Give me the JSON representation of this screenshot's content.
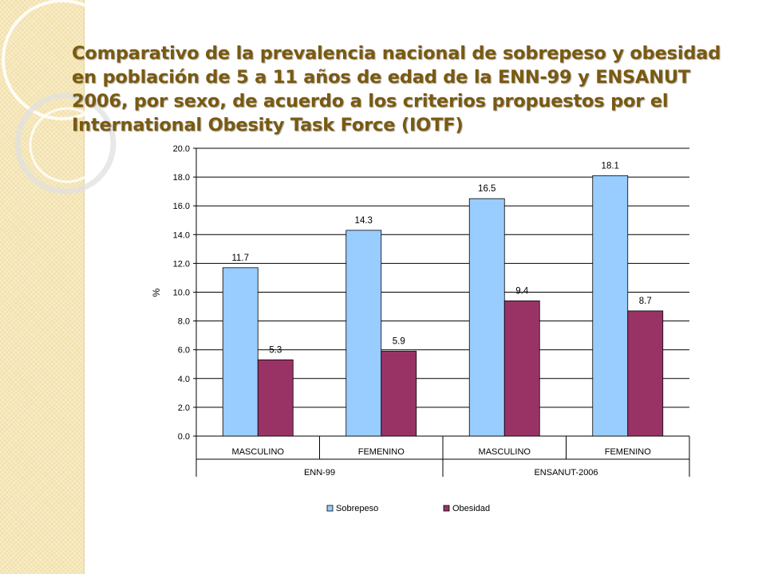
{
  "slide": {
    "title": "Comparativo de la prevalencia nacional de sobrepeso y obesidad en población de 5 a 11 años de edad de la ENN-99 y ENSANUT 2006, por sexo, de acuerdo a los criterios propuestos por el International Obesity Task Force (IOTF)"
  },
  "chart_data": {
    "type": "bar",
    "title": "",
    "xlabel": "",
    "ylabel": "%",
    "ylim": [
      0,
      20
    ],
    "yticks": [
      "0.0",
      "2.0",
      "4.0",
      "6.0",
      "8.0",
      "10.0",
      "12.0",
      "14.0",
      "16.0",
      "18.0",
      "20.0"
    ],
    "grid": true,
    "legend_position": "bottom",
    "categories": [
      "MASCULINO",
      "FEMENINO",
      "MASCULINO",
      "FEMENINO"
    ],
    "groups": [
      {
        "label": "ENN-99",
        "span": 2
      },
      {
        "label": "ENSANUT-2006",
        "span": 2
      }
    ],
    "series": [
      {
        "name": "Sobrepeso",
        "color": "#99ccff",
        "values": [
          11.7,
          14.3,
          16.5,
          18.1
        ],
        "labels": [
          "11.7",
          "14.3",
          "16.5",
          "18.1"
        ]
      },
      {
        "name": "Obesidad",
        "color": "#993366",
        "values": [
          5.3,
          5.9,
          9.4,
          8.7
        ],
        "labels": [
          "5.3",
          "5.9",
          "9.4",
          "8.7"
        ]
      }
    ]
  }
}
